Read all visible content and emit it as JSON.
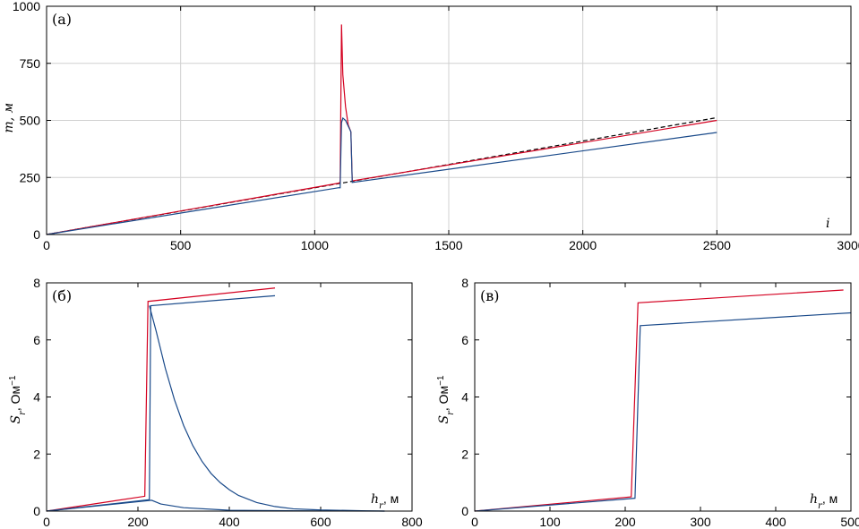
{
  "chart_data": [
    {
      "id": "a",
      "type": "line",
      "panel_label": "(а)",
      "xlabel": "i",
      "ylabel": "m, м",
      "xlim": [
        0,
        3000
      ],
      "ylim": [
        0,
        1000
      ],
      "xticks": [
        0,
        500,
        1000,
        1500,
        2000,
        2500,
        3000
      ],
      "yticks": [
        0,
        250,
        500,
        750,
        1000
      ],
      "grid": true,
      "series": [
        {
          "color": "#000000",
          "dash": true,
          "points": [
            [
              0,
              0
            ],
            [
              1100,
              225
            ],
            [
              2500,
              512
            ]
          ]
        },
        {
          "color": "#d40020",
          "points": [
            [
              0,
              0
            ],
            [
              1090,
              225
            ],
            [
              1095,
              230
            ],
            [
              1100,
              920
            ],
            [
              1105,
              700
            ],
            [
              1115,
              560
            ],
            [
              1125,
              480
            ],
            [
              1135,
              450
            ],
            [
              1140,
              235
            ],
            [
              2500,
              500
            ]
          ]
        },
        {
          "color": "#1a4a8a",
          "points": [
            [
              0,
              0
            ],
            [
              1090,
              205
            ],
            [
              1095,
              205
            ],
            [
              1100,
              490
            ],
            [
              1105,
              510
            ],
            [
              1115,
              500
            ],
            [
              1125,
              475
            ],
            [
              1135,
              450
            ],
            [
              1140,
              228
            ],
            [
              2500,
              447
            ]
          ]
        }
      ]
    },
    {
      "id": "b",
      "type": "line",
      "panel_label": "(б)",
      "xlabel": "h",
      "xlabel_sub": "r",
      "xlabel_unit": ", м",
      "ylabel": "S",
      "ylabel_sub": "r",
      "ylabel_unit": ", Ом",
      "ylabel_sup": "−1",
      "xlim": [
        0,
        800
      ],
      "ylim": [
        0,
        8
      ],
      "xticks": [
        0,
        200,
        400,
        600,
        800
      ],
      "yticks": [
        0,
        2,
        4,
        6,
        8
      ],
      "grid": false,
      "series": [
        {
          "color": "#d40020",
          "points": [
            [
              0,
              0
            ],
            [
              215,
              0.52
            ],
            [
              222,
              7.35
            ],
            [
              500,
              7.82
            ]
          ]
        },
        {
          "color": "#1a4a8a",
          "points": [
            [
              0,
              0
            ],
            [
              225,
              0.4
            ],
            [
              228,
              7.2
            ],
            [
              500,
              7.55
            ]
          ]
        },
        {
          "color": "#1a4a8a",
          "points": [
            [
              225,
              7.2
            ],
            [
              240,
              6.3
            ],
            [
              260,
              5.0
            ],
            [
              280,
              3.9
            ],
            [
              300,
              3.0
            ],
            [
              320,
              2.3
            ],
            [
              340,
              1.75
            ],
            [
              360,
              1.32
            ],
            [
              380,
              1.0
            ],
            [
              400,
              0.75
            ],
            [
              420,
              0.55
            ],
            [
              460,
              0.3
            ],
            [
              500,
              0.16
            ],
            [
              540,
              0.08
            ],
            [
              600,
              0.04
            ],
            [
              700,
              0.01
            ],
            [
              740,
              0.0
            ]
          ]
        },
        {
          "color": "#1a4a8a",
          "points": [
            [
              0,
              0
            ],
            [
              230,
              0.38
            ],
            [
              250,
              0.25
            ],
            [
              300,
              0.12
            ],
            [
              400,
              0.03
            ],
            [
              600,
              0.005
            ],
            [
              740,
              0.0
            ]
          ]
        }
      ]
    },
    {
      "id": "c",
      "type": "line",
      "panel_label": "(в)",
      "xlabel": "h",
      "xlabel_sub": "r",
      "xlabel_unit": ", м",
      "ylabel": "S",
      "ylabel_sub": "r",
      "ylabel_unit": ", Ом",
      "ylabel_sup": "−1",
      "xlim": [
        0,
        500
      ],
      "ylim": [
        0,
        8
      ],
      "xticks": [
        0,
        100,
        200,
        300,
        400,
        500
      ],
      "yticks": [
        0,
        2,
        4,
        6,
        8
      ],
      "grid": false,
      "series": [
        {
          "color": "#d40020",
          "points": [
            [
              0,
              0
            ],
            [
              208,
              0.5
            ],
            [
              217,
              7.3
            ],
            [
              490,
              7.75
            ]
          ]
        },
        {
          "color": "#1a4a8a",
          "points": [
            [
              0,
              0
            ],
            [
              213,
              0.45
            ],
            [
              220,
              6.5
            ],
            [
              500,
              6.95
            ]
          ]
        }
      ]
    }
  ]
}
